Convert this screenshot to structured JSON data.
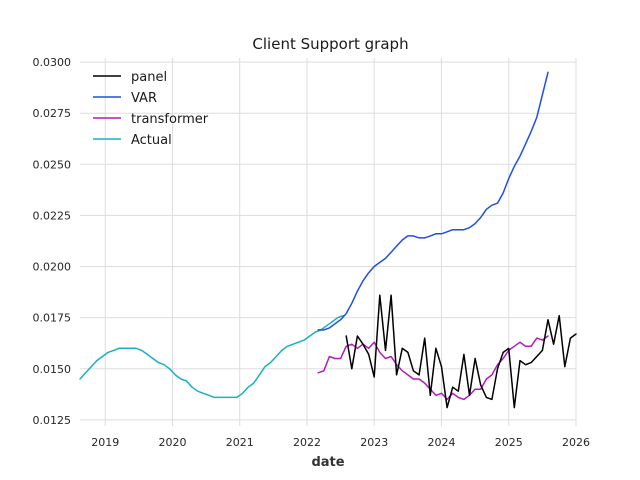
{
  "chart_data": {
    "type": "line",
    "title": "Client Support graph",
    "xlabel": "date",
    "ylabel": "",
    "xlim": [
      2018.625,
      2026.0
    ],
    "ylim": [
      0.0122,
      0.0302
    ],
    "x_ticks": [
      2019,
      2020,
      2021,
      2022,
      2023,
      2024,
      2025,
      2026
    ],
    "x_tick_labels": [
      "2019",
      "2020",
      "2021",
      "2022",
      "2023",
      "2024",
      "2025",
      "2026"
    ],
    "y_ticks": [
      0.0125,
      0.015,
      0.0175,
      0.02,
      0.0225,
      0.025,
      0.0275,
      0.03
    ],
    "y_tick_labels": [
      "0.0125",
      "0.0150",
      "0.0175",
      "0.0200",
      "0.0225",
      "0.0250",
      "0.0275",
      "0.0300"
    ],
    "grid": true,
    "legend_position": "top-left",
    "series": [
      {
        "name": "panel",
        "color": "#000000",
        "x": [
          2022.583,
          2022.667,
          2022.75,
          2022.833,
          2022.917,
          2023.0,
          2023.083,
          2023.167,
          2023.25,
          2023.333,
          2023.417,
          2023.5,
          2023.583,
          2023.667,
          2023.75,
          2023.833,
          2023.917,
          2024.0,
          2024.083,
          2024.167,
          2024.25,
          2024.333,
          2024.417,
          2024.5,
          2024.583,
          2024.667,
          2024.75,
          2024.833,
          2024.917,
          2025.0,
          2025.083,
          2025.167,
          2025.25,
          2025.333,
          2025.417,
          2025.5,
          2025.583,
          2025.667,
          2025.75,
          2025.833,
          2025.917,
          2026.0
        ],
        "values": [
          0.0166,
          0.015,
          0.0166,
          0.0162,
          0.0157,
          0.0146,
          0.0186,
          0.0159,
          0.0186,
          0.0147,
          0.016,
          0.0158,
          0.0149,
          0.0147,
          0.0165,
          0.0137,
          0.016,
          0.0151,
          0.0131,
          0.0141,
          0.0139,
          0.0157,
          0.0137,
          0.0155,
          0.0142,
          0.0136,
          0.0135,
          0.015,
          0.0158,
          0.016,
          0.0131,
          0.0154,
          0.0152,
          0.0153,
          0.0156,
          0.0159,
          0.0174,
          0.0162,
          0.0176,
          0.0151,
          0.0165,
          0.0167
        ]
      },
      {
        "name": "VAR",
        "color": "#1f4fe0",
        "x": [
          2022.167,
          2022.25,
          2022.333,
          2022.417,
          2022.5,
          2022.583,
          2022.667,
          2022.75,
          2022.833,
          2022.917,
          2023.0,
          2023.083,
          2023.167,
          2023.25,
          2023.333,
          2023.417,
          2023.5,
          2023.583,
          2023.667,
          2023.75,
          2023.833,
          2023.917,
          2024.0,
          2024.083,
          2024.167,
          2024.25,
          2024.333,
          2024.417,
          2024.5,
          2024.583,
          2024.667,
          2024.75,
          2024.833,
          2024.917,
          2025.0,
          2025.083,
          2025.167,
          2025.25,
          2025.333,
          2025.417,
          2025.5,
          2025.583
        ],
        "values": [
          0.0169,
          0.0169,
          0.017,
          0.0172,
          0.0174,
          0.0177,
          0.0182,
          0.0188,
          0.0193,
          0.0197,
          0.02,
          0.0202,
          0.0204,
          0.0207,
          0.021,
          0.0213,
          0.0215,
          0.0215,
          0.0214,
          0.0214,
          0.0215,
          0.0216,
          0.0216,
          0.0217,
          0.0218,
          0.0218,
          0.0218,
          0.0219,
          0.0221,
          0.0224,
          0.0228,
          0.023,
          0.0231,
          0.0236,
          0.0243,
          0.0249,
          0.0254,
          0.026,
          0.0266,
          0.0273,
          0.0284,
          0.0295
        ]
      },
      {
        "name": "transformer",
        "color": "#b31bbb",
        "x": [
          2022.167,
          2022.25,
          2022.333,
          2022.417,
          2022.5,
          2022.583,
          2022.667,
          2022.75,
          2022.833,
          2022.917,
          2023.0,
          2023.083,
          2023.167,
          2023.25,
          2023.333,
          2023.417,
          2023.5,
          2023.583,
          2023.667,
          2023.75,
          2023.833,
          2023.917,
          2024.0,
          2024.083,
          2024.167,
          2024.25,
          2024.333,
          2024.417,
          2024.5,
          2024.583,
          2024.667,
          2024.75,
          2024.833,
          2024.917,
          2025.0,
          2025.083,
          2025.167,
          2025.25,
          2025.333,
          2025.417,
          2025.5,
          2025.583
        ],
        "values": [
          0.0148,
          0.0149,
          0.0156,
          0.0155,
          0.0155,
          0.0161,
          0.0162,
          0.016,
          0.0162,
          0.016,
          0.0163,
          0.0158,
          0.0155,
          0.0156,
          0.0152,
          0.0149,
          0.0147,
          0.0145,
          0.0145,
          0.0143,
          0.014,
          0.0137,
          0.0138,
          0.0135,
          0.0138,
          0.0136,
          0.0135,
          0.0137,
          0.014,
          0.014,
          0.0145,
          0.0147,
          0.0152,
          0.0155,
          0.0159,
          0.0161,
          0.0163,
          0.0161,
          0.0161,
          0.0165,
          0.0164,
          0.0166
        ]
      },
      {
        "name": "Actual",
        "color": "#17b0c4",
        "x": [
          2018.625,
          2018.708,
          2018.792,
          2018.875,
          2018.958,
          2019.042,
          2019.125,
          2019.208,
          2019.292,
          2019.375,
          2019.458,
          2019.542,
          2019.625,
          2019.708,
          2019.792,
          2019.875,
          2019.958,
          2020.042,
          2020.125,
          2020.208,
          2020.292,
          2020.375,
          2020.458,
          2020.542,
          2020.625,
          2020.708,
          2020.792,
          2020.875,
          2020.958,
          2021.042,
          2021.125,
          2021.208,
          2021.292,
          2021.375,
          2021.458,
          2021.542,
          2021.625,
          2021.708,
          2021.792,
          2021.875,
          2021.958,
          2022.042,
          2022.125,
          2022.208,
          2022.292,
          2022.375,
          2022.458,
          2022.542
        ],
        "values": [
          0.0145,
          0.0148,
          0.0151,
          0.0154,
          0.0156,
          0.0158,
          0.0159,
          0.016,
          0.016,
          0.016,
          0.016,
          0.0159,
          0.0157,
          0.0155,
          0.0153,
          0.0152,
          0.015,
          0.0147,
          0.0145,
          0.0144,
          0.0141,
          0.0139,
          0.0138,
          0.0137,
          0.0136,
          0.0136,
          0.0136,
          0.0136,
          0.0136,
          0.0138,
          0.0141,
          0.0143,
          0.0147,
          0.0151,
          0.0153,
          0.0156,
          0.0159,
          0.0161,
          0.0162,
          0.0163,
          0.0164,
          0.0166,
          0.0168,
          0.0169,
          0.0171,
          0.0173,
          0.0175,
          0.0176
        ]
      }
    ]
  }
}
